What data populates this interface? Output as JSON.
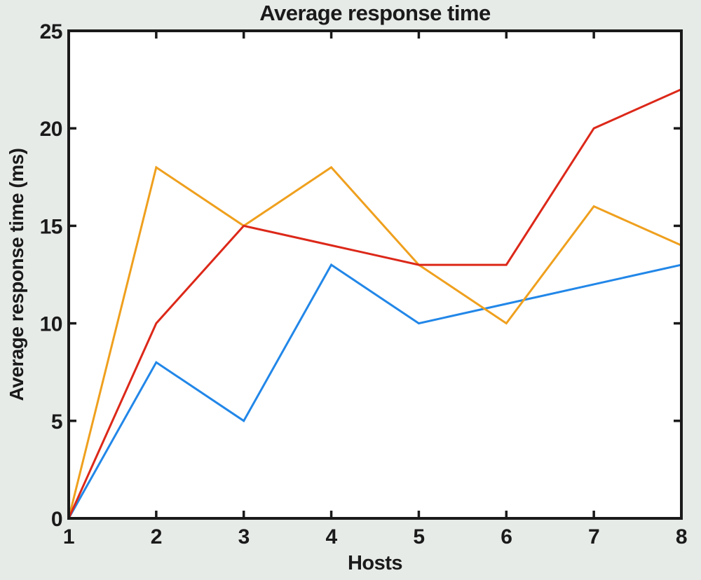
{
  "figure": {
    "background_color": "#e7ebe8",
    "plot_background_color": "#ffffff",
    "axis_color": "#1a1a1a"
  },
  "chart_data": {
    "type": "line",
    "title": "Average response time",
    "xlabel": "Hosts",
    "ylabel": "Average response time (ms)",
    "x": [
      1,
      2,
      3,
      4,
      5,
      6,
      7,
      8
    ],
    "xlim": [
      1,
      8
    ],
    "ylim": [
      0,
      25
    ],
    "xticks": [
      1,
      2,
      3,
      4,
      5,
      6,
      7,
      8
    ],
    "yticks": [
      0,
      5,
      10,
      15,
      20,
      25
    ],
    "grid": false,
    "legend": "none",
    "series": [
      {
        "name": "series-blue",
        "color": "#2287e8",
        "values": [
          0,
          8,
          5,
          13,
          10,
          11,
          12,
          13
        ]
      },
      {
        "name": "series-orange",
        "color": "#efa01e",
        "values": [
          0,
          18,
          15,
          18,
          13,
          10,
          16,
          14
        ]
      },
      {
        "name": "series-red",
        "color": "#dc2819",
        "values": [
          0,
          10,
          15,
          14,
          13,
          13,
          20,
          22
        ]
      }
    ]
  }
}
